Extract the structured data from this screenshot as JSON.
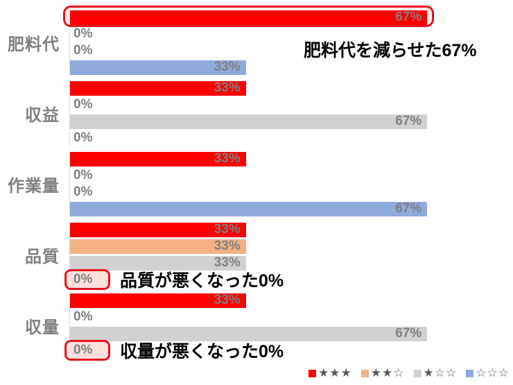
{
  "chart_data": {
    "type": "bar",
    "orientation": "horizontal",
    "title": "",
    "xlabel": "",
    "ylabel": "",
    "value_suffix": "%",
    "xlim": [
      0,
      83
    ],
    "grid": false,
    "legend_position": "bottom-right",
    "categories": [
      "肥料代",
      "収益",
      "作業量",
      "品質",
      "収量"
    ],
    "series": [
      {
        "name": "★★★",
        "color": "#fe0000",
        "values": [
          67,
          33,
          33,
          33,
          33
        ]
      },
      {
        "name": "★★☆",
        "color": "#f4b183",
        "values": [
          0,
          0,
          0,
          33,
          0
        ]
      },
      {
        "name": "★☆☆",
        "color": "#d2d0d0",
        "values": [
          0,
          67,
          0,
          33,
          67
        ]
      },
      {
        "name": "☆☆☆",
        "color": "#8faadc",
        "values": [
          33,
          0,
          67,
          0,
          0
        ]
      }
    ],
    "annotations": [
      {
        "text": "肥料代を減らせた67%",
        "category_index": 0,
        "series_index": 0,
        "placement": "floating"
      },
      {
        "text": "品質が悪くなった0%",
        "category_index": 3,
        "series_index": 3,
        "placement": "inline"
      },
      {
        "text": "収量が悪くなった0%",
        "category_index": 4,
        "series_index": 3,
        "placement": "inline"
      }
    ],
    "highlights": [
      {
        "type": "bar-outline",
        "category_index": 0,
        "series_index": 0
      },
      {
        "type": "zero-box",
        "category_index": 3,
        "series_index": 3
      },
      {
        "type": "zero-box",
        "category_index": 4,
        "series_index": 3
      }
    ],
    "colors": {
      "value_label": "#7f7f7f",
      "category_label": "#7f7f7f",
      "annotation_text": "#000000",
      "highlight_stroke": "#e8141c",
      "highlight_fill_bar": "#fdecea",
      "highlight_fill_box": "#fbe0dd",
      "axis_line": "#dcdcdc",
      "legend_star": "#595959",
      "background": "#ffffff"
    }
  }
}
